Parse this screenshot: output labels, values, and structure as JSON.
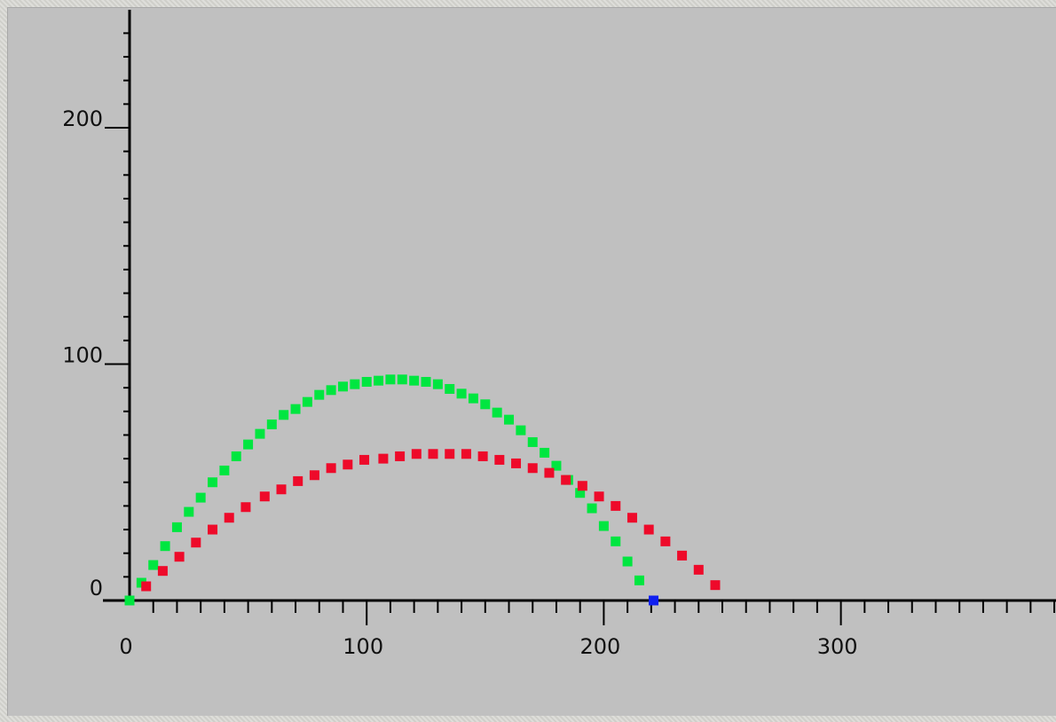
{
  "chart_data": {
    "type": "scatter",
    "title": "",
    "xlabel": "",
    "ylabel": "",
    "xlim": [
      0,
      390
    ],
    "ylim": [
      0,
      245
    ],
    "grid": false,
    "x_ticks": [
      0,
      100,
      200,
      300
    ],
    "y_ticks": [
      0,
      100,
      200
    ],
    "x_tick_labels": [
      "0",
      "100",
      "200",
      "300"
    ],
    "y_tick_labels": [
      "0",
      "100",
      "200"
    ],
    "x_minor_step": 10,
    "y_minor_step": 10,
    "series": [
      {
        "color": "#00e640",
        "points": [
          [
            0,
            0
          ],
          [
            5,
            7.5
          ],
          [
            10,
            15
          ],
          [
            15,
            23
          ],
          [
            20,
            31
          ],
          [
            25,
            37.5
          ],
          [
            30,
            43.5
          ],
          [
            35,
            50
          ],
          [
            40,
            55
          ],
          [
            45,
            61
          ],
          [
            50,
            66
          ],
          [
            55,
            70.5
          ],
          [
            60,
            74.5
          ],
          [
            65,
            78.5
          ],
          [
            70,
            81
          ],
          [
            75,
            84
          ],
          [
            80,
            87
          ],
          [
            85,
            89
          ],
          [
            90,
            90.5
          ],
          [
            95,
            91.5
          ],
          [
            100,
            92.5
          ],
          [
            105,
            93
          ],
          [
            110,
            93.5
          ],
          [
            115,
            93.5
          ],
          [
            120,
            93
          ],
          [
            125,
            92.5
          ],
          [
            130,
            91.5
          ],
          [
            135,
            89.5
          ],
          [
            140,
            87.5
          ],
          [
            145,
            85.5
          ],
          [
            150,
            83
          ],
          [
            155,
            79.5
          ],
          [
            160,
            76.5
          ],
          [
            165,
            72
          ],
          [
            170,
            67
          ],
          [
            175,
            62.5
          ],
          [
            180,
            57
          ],
          [
            185,
            51
          ],
          [
            190,
            45.5
          ],
          [
            195,
            39
          ],
          [
            200,
            31.5
          ],
          [
            205,
            25
          ],
          [
            210,
            16.5
          ],
          [
            215,
            8.5
          ]
        ]
      },
      {
        "color": "#ee0a2a",
        "points": [
          [
            7,
            6
          ],
          [
            14,
            12.5
          ],
          [
            21,
            18.5
          ],
          [
            28,
            24.5
          ],
          [
            35,
            30
          ],
          [
            42,
            35
          ],
          [
            49,
            39.5
          ],
          [
            57,
            44
          ],
          [
            64,
            47
          ],
          [
            71,
            50.5
          ],
          [
            78,
            53
          ],
          [
            85,
            56
          ],
          [
            92,
            57.5
          ],
          [
            99,
            59.5
          ],
          [
            107,
            60
          ],
          [
            114,
            61
          ],
          [
            121,
            62
          ],
          [
            128,
            62
          ],
          [
            135,
            62
          ],
          [
            142,
            62
          ],
          [
            149,
            61
          ],
          [
            156,
            59.5
          ],
          [
            163,
            58
          ],
          [
            170,
            56
          ],
          [
            177,
            54
          ],
          [
            184,
            51
          ],
          [
            191,
            48.5
          ],
          [
            198,
            44
          ],
          [
            205,
            40
          ],
          [
            212,
            35
          ],
          [
            219,
            30
          ],
          [
            226,
            25
          ],
          [
            233,
            19
          ],
          [
            240,
            13
          ],
          [
            247,
            6.5
          ]
        ]
      },
      {
        "color": "#1020f0",
        "points": [
          [
            221,
            0
          ]
        ]
      }
    ]
  }
}
